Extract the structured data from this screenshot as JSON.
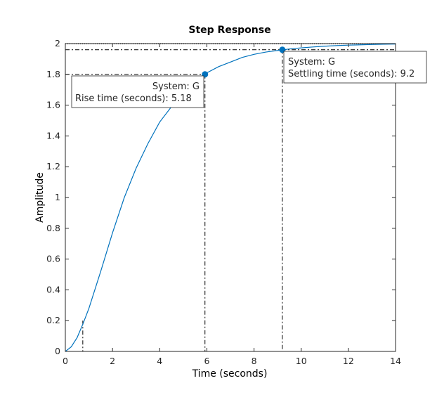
{
  "chart_data": {
    "type": "line",
    "title": "Step Response",
    "xlabel": "Time (seconds)",
    "ylabel": "Amplitude",
    "xlim": [
      0,
      14
    ],
    "ylim": [
      0,
      2
    ],
    "xticks": [
      "0",
      "2",
      "4",
      "6",
      "8",
      "10",
      "12",
      "14"
    ],
    "yticks": [
      "0",
      "0.2",
      "0.4",
      "0.6",
      "0.8",
      "1",
      "1.2",
      "1.4",
      "1.6",
      "1.8",
      "2"
    ],
    "grid": false,
    "line_color": "#0072bd",
    "steady_state": 2,
    "series": [
      {
        "x": [
          0,
          0.25,
          0.5,
          0.75,
          1,
          1.5,
          2,
          2.5,
          3,
          3.5,
          4,
          4.5,
          5,
          5.5,
          6,
          6.5,
          7,
          7.5,
          8,
          8.5,
          9,
          9.5,
          10,
          10.5,
          11,
          11.5,
          12,
          12.5,
          13,
          13.5,
          14
        ],
        "values": [
          0,
          0.03,
          0.09,
          0.18,
          0.28,
          0.52,
          0.77,
          1.0,
          1.19,
          1.35,
          1.49,
          1.59,
          1.68,
          1.75,
          1.81,
          1.85,
          1.88,
          1.91,
          1.93,
          1.945,
          1.955,
          1.965,
          1.972,
          1.978,
          1.983,
          1.987,
          1.99,
          1.992,
          1.994,
          1.996,
          1.997
        ]
      }
    ],
    "rise_time": {
      "system_label": "System: G",
      "label": "Rise time (seconds): 5.18",
      "start": 0.74,
      "end": 5.92,
      "low_level": 0.2,
      "high_level": 1.8
    },
    "settling_time": {
      "system_label": "System: G",
      "label": "Settling time (seconds): 9.2",
      "time": 9.2,
      "level": 1.96,
      "band": [
        1.96,
        2.04
      ]
    }
  }
}
